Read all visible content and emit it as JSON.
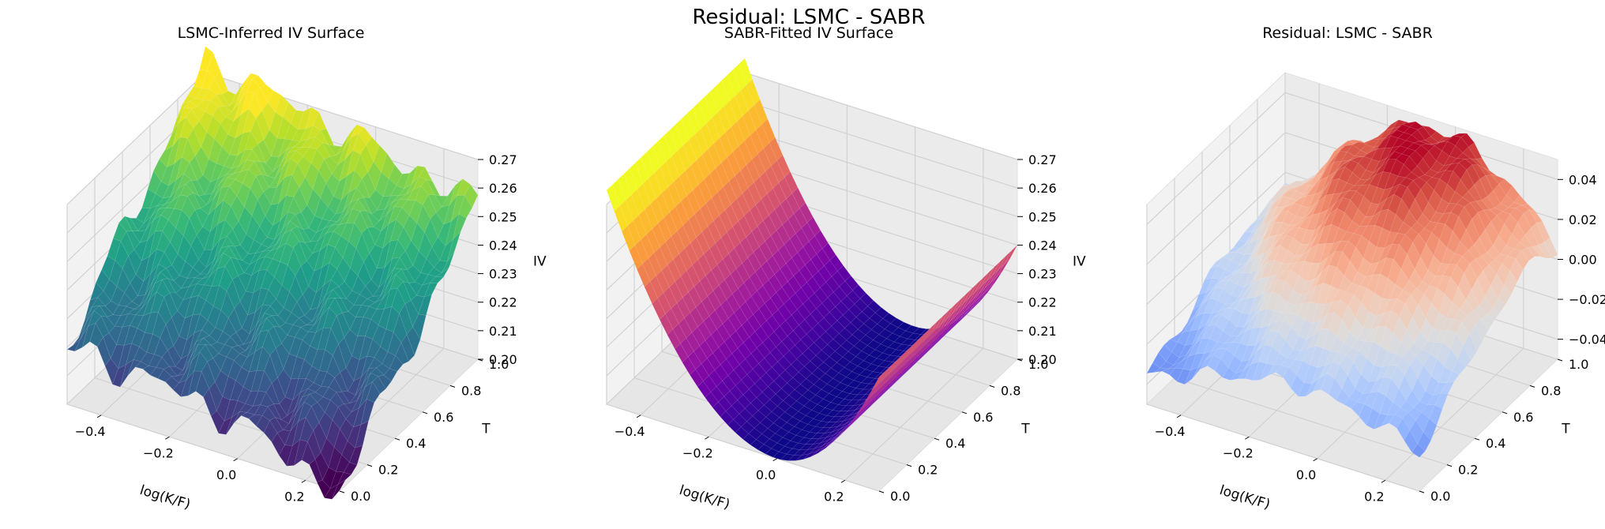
{
  "figure": {
    "suptitle": "Residual: LSMC - SABR"
  },
  "chart_data": [
    {
      "type": "surface3d",
      "title": "LSMC-Inferred IV Surface",
      "xlabel": "log(K/F)",
      "ylabel": "T",
      "zlabel": "IV",
      "xlim": [
        -0.5,
        0.3
      ],
      "ylim": [
        0.0,
        1.0
      ],
      "zlim": [
        0.2,
        0.27
      ],
      "xticks": [
        "−0.4",
        "−0.2",
        "0.0",
        "0.2"
      ],
      "yticks": [
        "0.0",
        "0.2",
        "0.4",
        "0.6",
        "0.8",
        "1.0"
      ],
      "zticks": [
        "0.20",
        "0.21",
        "0.22",
        "0.23",
        "0.24",
        "0.25",
        "0.26",
        "0.27"
      ],
      "colormap": "viridis",
      "corner_values": {
        "x_min_T_0": 0.225,
        "x_max_T_0": 0.205,
        "x_min_T_1": 0.275,
        "x_max_T_1": 0.262
      },
      "grid": true
    },
    {
      "type": "surface3d",
      "title": "SABR-Fitted IV Surface",
      "xlabel": "log(K/F)",
      "ylabel": "T",
      "zlabel": "IV",
      "xlim": [
        -0.5,
        0.3
      ],
      "ylim": [
        0.0,
        1.0
      ],
      "zlim": [
        0.2,
        0.27
      ],
      "xticks": [
        "−0.4",
        "−0.2",
        "0.0",
        "0.2"
      ],
      "yticks": [
        "0.0",
        "0.2",
        "0.4",
        "0.6",
        "0.8",
        "1.0"
      ],
      "zticks": [
        "0.20",
        "0.21",
        "0.22",
        "0.23",
        "0.24",
        "0.25",
        "0.26",
        "0.27"
      ],
      "colormap": "plasma",
      "smile": {
        "atm_iv": 0.2,
        "left_wing_iv": 0.275,
        "right_wing_iv": 0.24
      },
      "grid": true
    },
    {
      "type": "surface3d",
      "title": "Residual: LSMC - SABR",
      "xlabel": "log(K/F)",
      "ylabel": "T",
      "zlabel": "",
      "xlim": [
        -0.5,
        0.3
      ],
      "ylim": [
        0.0,
        1.0
      ],
      "zlim": [
        -0.05,
        0.05
      ],
      "xticks": [
        "−0.4",
        "−0.2",
        "0.0",
        "0.2"
      ],
      "yticks": [
        "0.0",
        "0.2",
        "0.4",
        "0.6",
        "0.8",
        "1.0"
      ],
      "zticks": [
        "−0.04",
        "−0.02",
        "0.00",
        "0.02",
        "0.04"
      ],
      "colormap": "coolwarm",
      "peak": {
        "x": -0.05,
        "T": 0.85,
        "value": 0.05
      },
      "trough": {
        "x": -0.5,
        "T": 0.0,
        "value": -0.048
      },
      "grid": true
    }
  ]
}
